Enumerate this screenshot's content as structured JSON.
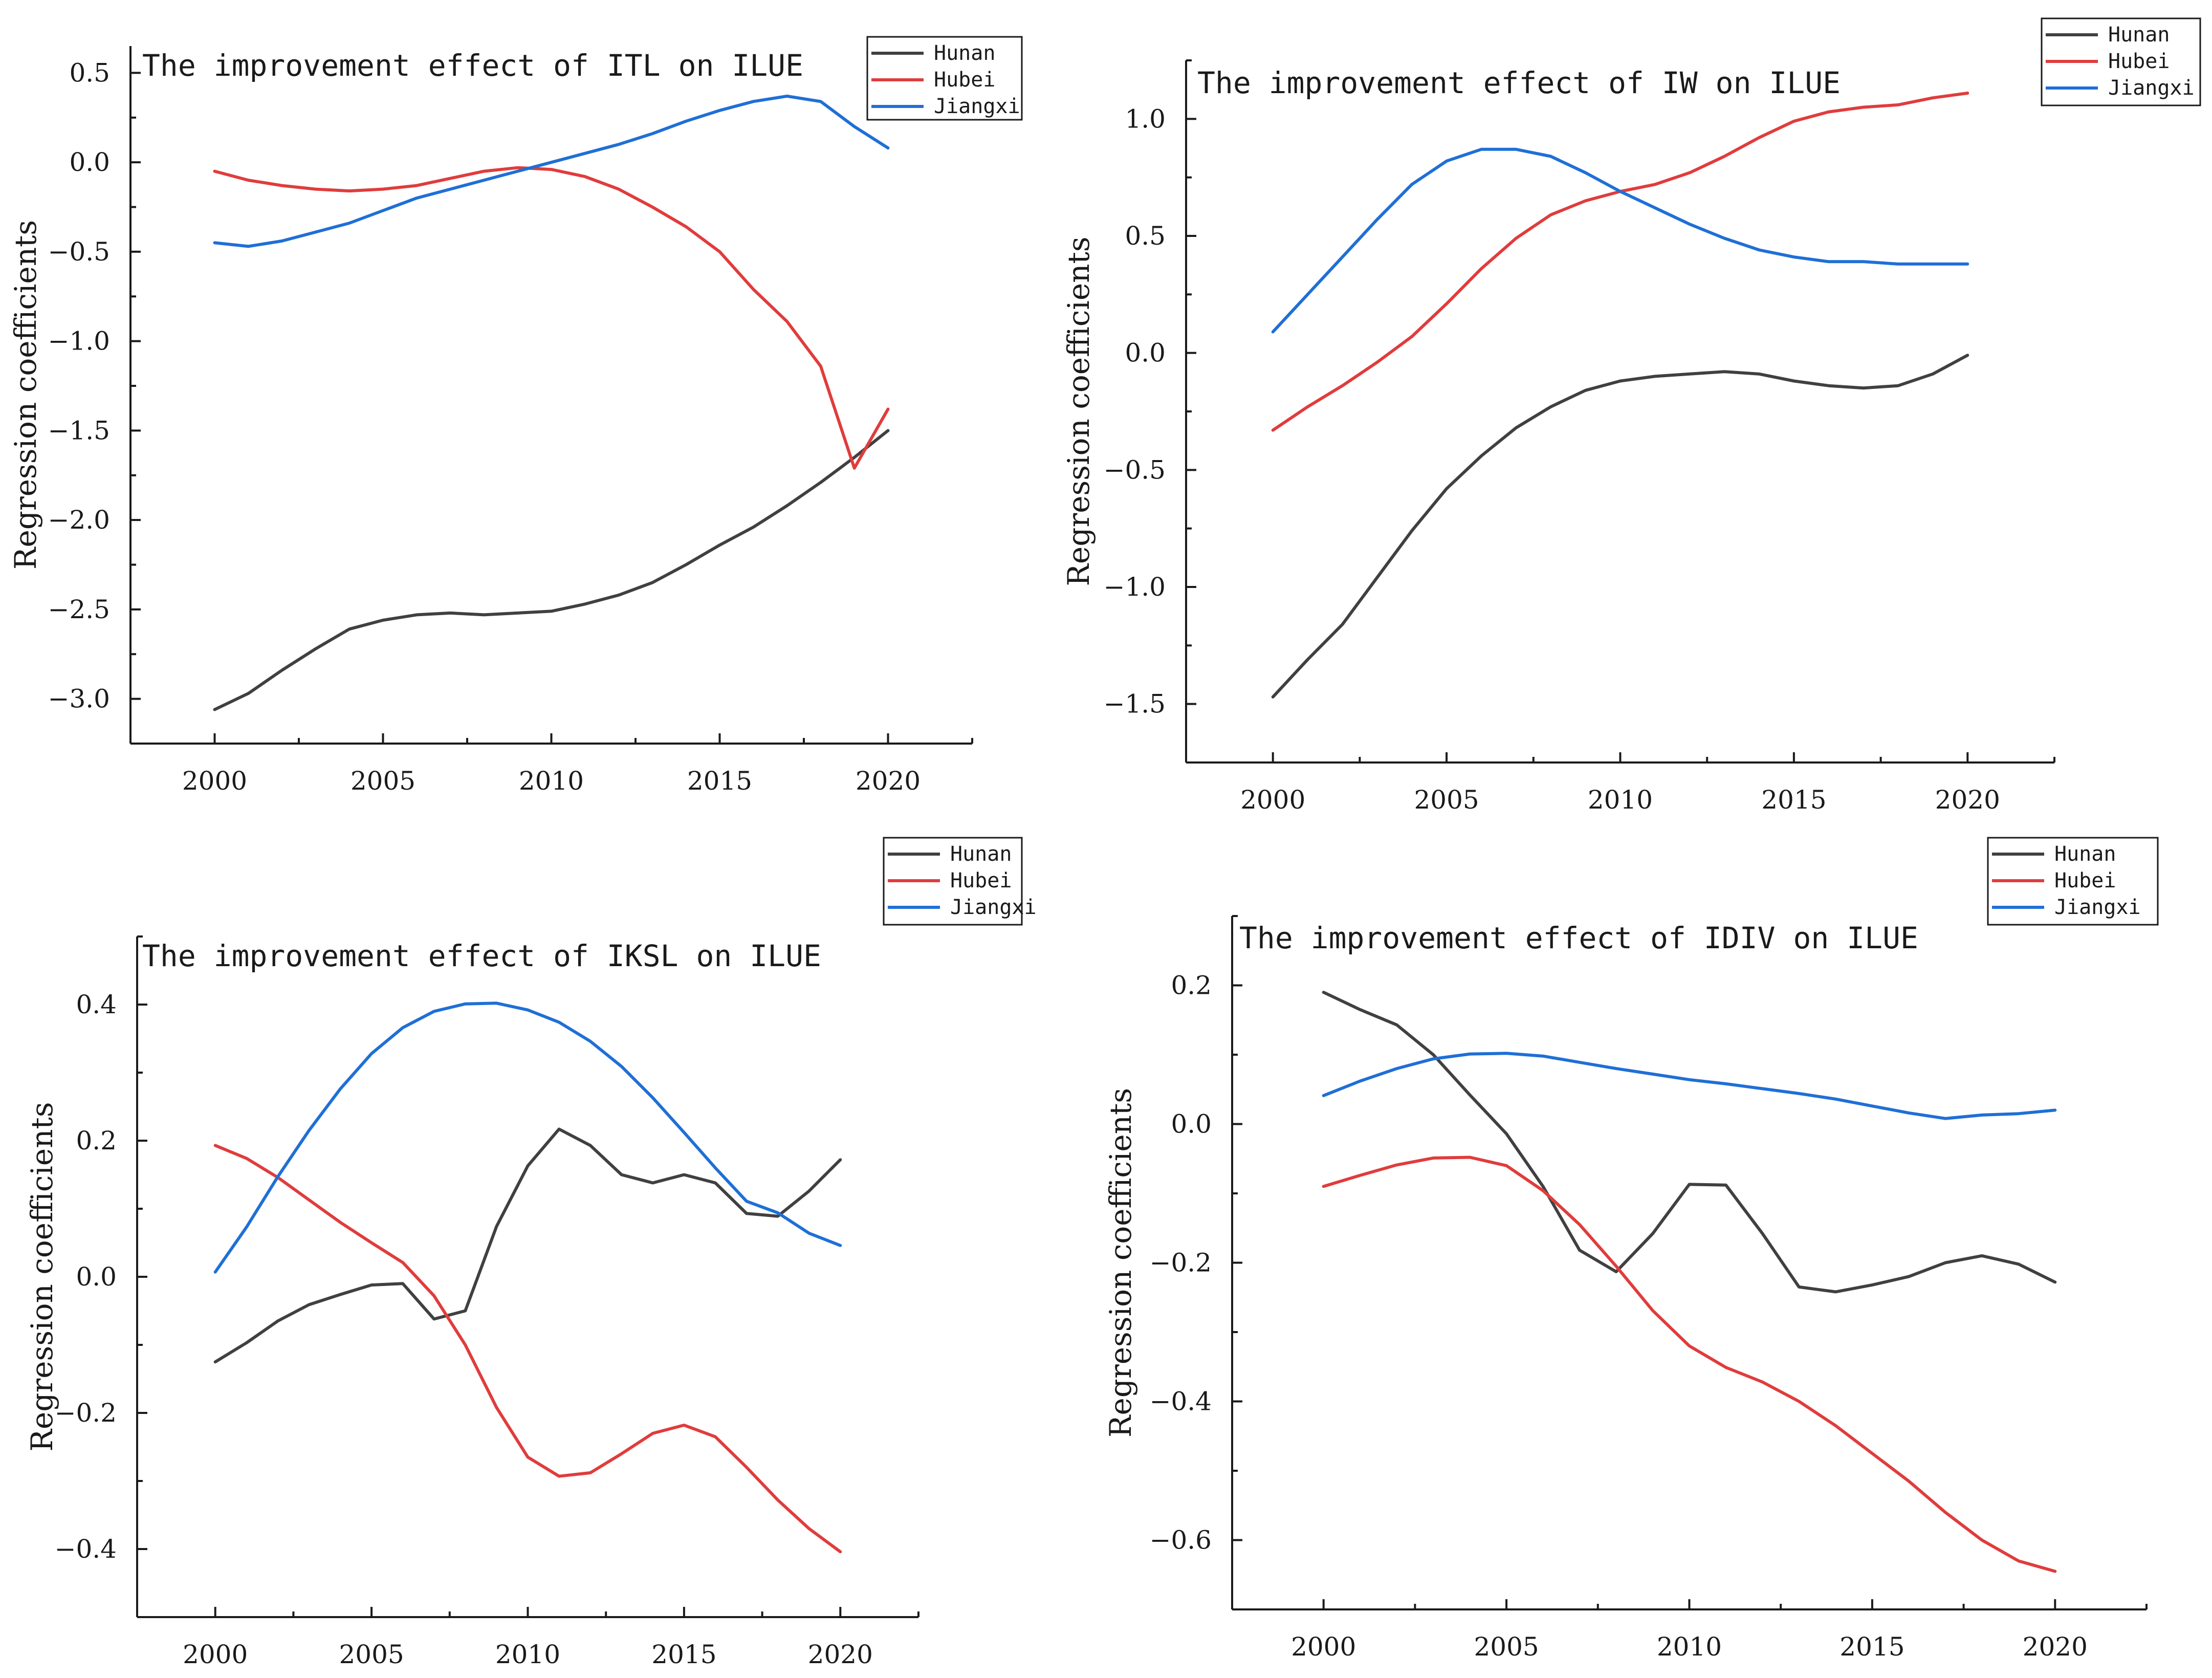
{
  "colors": {
    "Hunan": "#404040",
    "Hubei": "#e03c3c",
    "Jiangxi": "#1f6fd6",
    "axis": "#1a1a1a"
  },
  "chart_data": [
    {
      "type": "line",
      "title": "The improvement effect of ITL on ILUE",
      "xlabel": "",
      "ylabel": "Regression coefficients",
      "xlim": [
        1997.5,
        2022.5
      ],
      "ylim": [
        -3.25,
        0.65
      ],
      "xticks": [
        2000,
        2005,
        2010,
        2015,
        2020
      ],
      "xtick_labels": [
        "2000",
        "2005",
        "2010",
        "2015",
        "2020"
      ],
      "yticks": [
        0.5,
        0.0,
        -0.5,
        -1.0,
        -1.5,
        -2.0,
        -2.5,
        -3.0
      ],
      "ytick_labels": [
        "0.5",
        "0.0",
        "−0.5",
        "−1.0",
        "−1.5",
        "−2.0",
        "−2.5",
        "−3.0"
      ],
      "legend": "top-right",
      "x": [
        2000,
        2001,
        2002,
        2003,
        2004,
        2005,
        2006,
        2007,
        2008,
        2009,
        2010,
        2011,
        2012,
        2013,
        2014,
        2015,
        2016,
        2017,
        2018,
        2019,
        2020
      ],
      "series": [
        {
          "name": "Hunan",
          "values": [
            -3.06,
            -2.97,
            -2.84,
            -2.72,
            -2.61,
            -2.56,
            -2.53,
            -2.52,
            -2.53,
            -2.52,
            -2.51,
            -2.47,
            -2.42,
            -2.35,
            -2.25,
            -2.14,
            -2.04,
            -1.92,
            -1.79,
            -1.65,
            -1.5
          ]
        },
        {
          "name": "Hubei",
          "values": [
            -0.05,
            -0.1,
            -0.13,
            -0.15,
            -0.16,
            -0.15,
            -0.13,
            -0.09,
            -0.05,
            -0.03,
            -0.04,
            -0.08,
            -0.15,
            -0.25,
            -0.36,
            -0.5,
            -0.71,
            -0.89,
            -1.14,
            -1.71,
            -1.38
          ]
        },
        {
          "name": "Jiangxi",
          "values": [
            -0.45,
            -0.47,
            -0.44,
            -0.39,
            -0.34,
            -0.27,
            -0.2,
            -0.15,
            -0.1,
            -0.05,
            0.0,
            0.05,
            0.1,
            0.16,
            0.23,
            0.29,
            0.34,
            0.37,
            0.34,
            0.2,
            0.08
          ]
        }
      ]
    },
    {
      "type": "line",
      "title": "The improvement effect of IW on ILUE",
      "xlabel": "",
      "ylabel": "Regression coefficients",
      "xlim": [
        1997.5,
        2022.5
      ],
      "ylim": [
        -1.75,
        1.25
      ],
      "xticks": [
        2000,
        2005,
        2010,
        2015,
        2020
      ],
      "xtick_labels": [
        "2000",
        "2005",
        "2010",
        "2015",
        "2020"
      ],
      "yticks": [
        1.0,
        0.5,
        0.0,
        -0.5,
        -1.0,
        -1.5
      ],
      "ytick_labels": [
        "1.0",
        "0.5",
        "0.0",
        "−0.5",
        "−1.0",
        "−1.5"
      ],
      "legend": "top-right",
      "x": [
        2000,
        2001,
        2002,
        2003,
        2004,
        2005,
        2006,
        2007,
        2008,
        2009,
        2010,
        2011,
        2012,
        2013,
        2014,
        2015,
        2016,
        2017,
        2018,
        2019,
        2020
      ],
      "series": [
        {
          "name": "Hunan",
          "values": [
            -1.47,
            -1.31,
            -1.16,
            -0.96,
            -0.76,
            -0.58,
            -0.44,
            -0.32,
            -0.23,
            -0.16,
            -0.12,
            -0.1,
            -0.09,
            -0.08,
            -0.09,
            -0.12,
            -0.14,
            -0.15,
            -0.14,
            -0.09,
            -0.01
          ]
        },
        {
          "name": "Hubei",
          "values": [
            -0.33,
            -0.23,
            -0.14,
            -0.04,
            0.07,
            0.21,
            0.36,
            0.49,
            0.59,
            0.65,
            0.69,
            0.72,
            0.77,
            0.84,
            0.92,
            0.99,
            1.03,
            1.05,
            1.06,
            1.09,
            1.11
          ]
        },
        {
          "name": "Jiangxi",
          "values": [
            0.09,
            0.25,
            0.41,
            0.57,
            0.72,
            0.82,
            0.87,
            0.87,
            0.84,
            0.77,
            0.69,
            0.62,
            0.55,
            0.49,
            0.44,
            0.41,
            0.39,
            0.39,
            0.38,
            0.38,
            0.38
          ]
        }
      ]
    },
    {
      "type": "line",
      "title": "The improvement effect of IKSL on ILUE",
      "xlabel": "",
      "ylabel": "Regression coefficients",
      "xlim": [
        1997.5,
        2022.5
      ],
      "ylim": [
        -0.5,
        0.5
      ],
      "xticks": [
        2000,
        2005,
        2010,
        2015,
        2020
      ],
      "xtick_labels": [
        "2000",
        "2005",
        "2010",
        "2015",
        "2020"
      ],
      "yticks": [
        0.4,
        0.2,
        0.0,
        -0.2,
        -0.4
      ],
      "ytick_labels": [
        "0.4",
        "0.2",
        "0.0",
        "−0.2",
        "−0.4"
      ],
      "legend": "top-right",
      "x": [
        2000,
        2001,
        2002,
        2003,
        2004,
        2005,
        2006,
        2007,
        2008,
        2009,
        2010,
        2011,
        2012,
        2013,
        2014,
        2015,
        2016,
        2017,
        2018,
        2019,
        2020
      ],
      "series": [
        {
          "name": "Hunan",
          "values": [
            -0.125,
            -0.097,
            -0.065,
            -0.041,
            -0.026,
            -0.012,
            -0.01,
            -0.062,
            -0.05,
            0.074,
            0.163,
            0.217,
            0.193,
            0.15,
            0.138,
            0.15,
            0.138,
            0.093,
            0.089,
            0.126,
            0.172
          ]
        },
        {
          "name": "Hubei",
          "values": [
            0.193,
            0.174,
            0.146,
            0.113,
            0.08,
            0.05,
            0.021,
            -0.028,
            -0.1,
            -0.192,
            -0.265,
            -0.293,
            -0.288,
            -0.26,
            -0.23,
            -0.218,
            -0.235,
            -0.28,
            -0.328,
            -0.37,
            -0.404
          ]
        },
        {
          "name": "Jiangxi",
          "values": [
            0.007,
            0.073,
            0.147,
            0.215,
            0.276,
            0.328,
            0.366,
            0.39,
            0.401,
            0.402,
            0.392,
            0.374,
            0.346,
            0.309,
            0.263,
            0.212,
            0.16,
            0.111,
            0.094,
            0.064,
            0.046
          ]
        }
      ]
    },
    {
      "type": "line",
      "title": "The improvement effect of IDIV on ILUE",
      "xlabel": "",
      "ylabel": "Regression coefficients",
      "xlim": [
        1997.5,
        2022.5
      ],
      "ylim": [
        -0.7,
        0.3
      ],
      "xticks": [
        2000,
        2005,
        2010,
        2015,
        2020
      ],
      "xtick_labels": [
        "2000",
        "2005",
        "2010",
        "2015",
        "2020"
      ],
      "yticks": [
        0.2,
        0.0,
        -0.2,
        -0.4,
        -0.6
      ],
      "ytick_labels": [
        "0.2",
        "0.0",
        "−0.2",
        "−0.4",
        "−0.6"
      ],
      "legend": "top-right",
      "x": [
        2000,
        2001,
        2002,
        2003,
        2004,
        2005,
        2006,
        2007,
        2008,
        2009,
        2010,
        2011,
        2012,
        2013,
        2014,
        2015,
        2016,
        2017,
        2018,
        2019,
        2020
      ],
      "series": [
        {
          "name": "Hunan",
          "values": [
            0.19,
            0.165,
            0.143,
            0.1,
            0.042,
            -0.014,
            -0.09,
            -0.182,
            -0.213,
            -0.158,
            -0.087,
            -0.088,
            -0.158,
            -0.235,
            -0.242,
            -0.232,
            -0.22,
            -0.2,
            -0.19,
            -0.202,
            -0.228
          ]
        },
        {
          "name": "Hubei",
          "values": [
            -0.09,
            -0.074,
            -0.059,
            -0.049,
            -0.048,
            -0.06,
            -0.096,
            -0.145,
            -0.205,
            -0.269,
            -0.32,
            -0.351,
            -0.372,
            -0.4,
            -0.435,
            -0.475,
            -0.515,
            -0.56,
            -0.6,
            -0.63,
            -0.645
          ]
        },
        {
          "name": "Jiangxi",
          "values": [
            0.041,
            0.062,
            0.08,
            0.094,
            0.101,
            0.102,
            0.098,
            0.089,
            0.08,
            0.072,
            0.064,
            0.058,
            0.051,
            0.044,
            0.036,
            0.026,
            0.016,
            0.008,
            0.013,
            0.015,
            0.02
          ]
        }
      ]
    }
  ]
}
